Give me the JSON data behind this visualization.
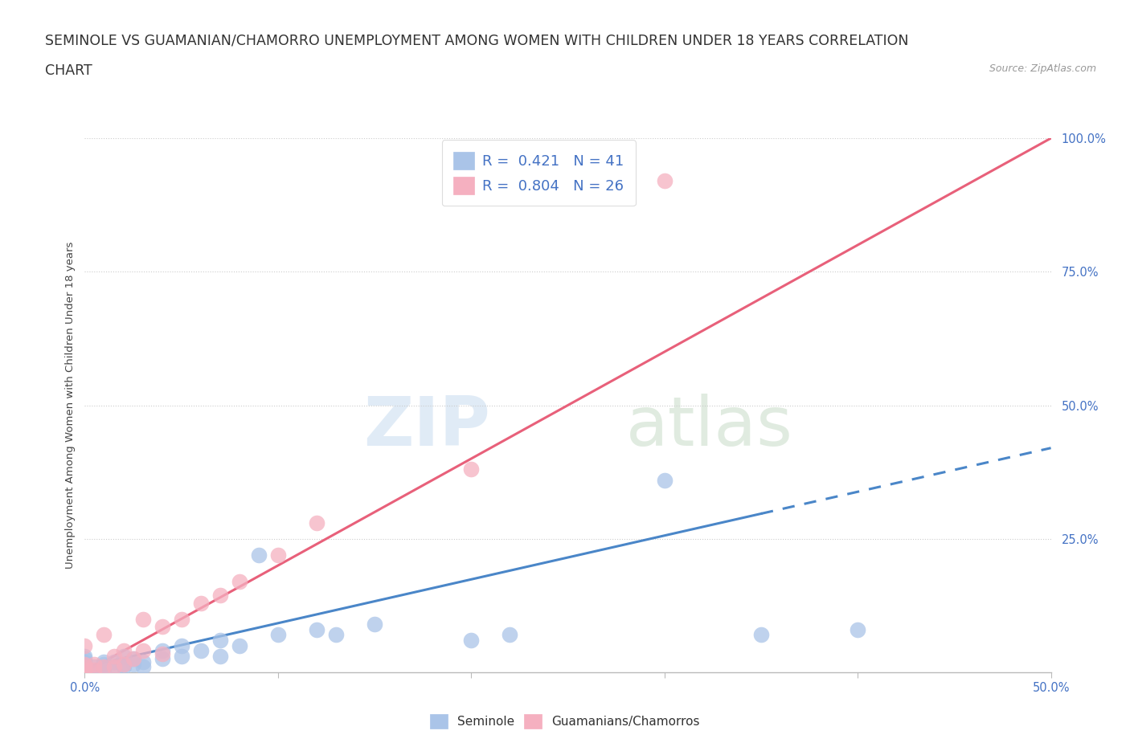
{
  "title_line1": "SEMINOLE VS GUAMANIAN/CHAMORRO UNEMPLOYMENT AMONG WOMEN WITH CHILDREN UNDER 18 YEARS CORRELATION",
  "title_line2": "CHART",
  "source_text": "Source: ZipAtlas.com",
  "ylabel": "Unemployment Among Women with Children Under 18 years",
  "xlim": [
    0.0,
    0.5
  ],
  "ylim": [
    0.0,
    1.0
  ],
  "seminole_R": 0.421,
  "seminole_N": 41,
  "guamanian_R": 0.804,
  "guamanian_N": 26,
  "seminole_color": "#aac4e8",
  "guamanian_color": "#f5b0c0",
  "seminole_line_color": "#4a86c8",
  "guamanian_line_color": "#e8607a",
  "legend_text_color": "#4472c4",
  "tick_color": "#4472c4",
  "grid_color": "#cccccc",
  "bg_color": "#ffffff",
  "title_fontsize": 12.5,
  "tick_fontsize": 10.5,
  "ylabel_fontsize": 9.5,
  "seminole_x": [
    0.0,
    0.0,
    0.0,
    0.0,
    0.0,
    0.0,
    0.0,
    0.0,
    0.005,
    0.005,
    0.01,
    0.01,
    0.01,
    0.01,
    0.015,
    0.015,
    0.02,
    0.02,
    0.02,
    0.025,
    0.025,
    0.03,
    0.03,
    0.04,
    0.04,
    0.05,
    0.05,
    0.06,
    0.07,
    0.07,
    0.08,
    0.09,
    0.1,
    0.12,
    0.13,
    0.15,
    0.2,
    0.22,
    0.3,
    0.35,
    0.4
  ],
  "seminole_y": [
    0.0,
    0.0,
    0.005,
    0.01,
    0.015,
    0.02,
    0.025,
    0.03,
    0.0,
    0.01,
    0.005,
    0.01,
    0.015,
    0.02,
    0.01,
    0.02,
    0.01,
    0.015,
    0.03,
    0.015,
    0.025,
    0.01,
    0.02,
    0.025,
    0.04,
    0.03,
    0.05,
    0.04,
    0.03,
    0.06,
    0.05,
    0.22,
    0.07,
    0.08,
    0.07,
    0.09,
    0.06,
    0.07,
    0.36,
    0.07,
    0.08
  ],
  "guamanian_x": [
    0.0,
    0.0,
    0.0,
    0.0,
    0.0,
    0.005,
    0.005,
    0.01,
    0.01,
    0.015,
    0.015,
    0.02,
    0.02,
    0.025,
    0.03,
    0.03,
    0.04,
    0.04,
    0.05,
    0.06,
    0.07,
    0.08,
    0.1,
    0.12,
    0.2,
    0.3
  ],
  "guamanian_y": [
    0.0,
    0.005,
    0.01,
    0.015,
    0.05,
    0.005,
    0.015,
    0.01,
    0.07,
    0.01,
    0.03,
    0.015,
    0.04,
    0.025,
    0.04,
    0.1,
    0.035,
    0.085,
    0.1,
    0.13,
    0.145,
    0.17,
    0.22,
    0.28,
    0.38,
    0.92
  ],
  "seminole_line_x0": 0.0,
  "seminole_line_x1": 0.5,
  "seminole_line_y0": 0.01,
  "seminole_line_y1": 0.42,
  "seminole_dash_from": 0.35,
  "guamanian_line_x0": 0.0,
  "guamanian_line_x1": 0.5,
  "guamanian_line_y0": 0.0,
  "guamanian_line_y1": 1.0
}
